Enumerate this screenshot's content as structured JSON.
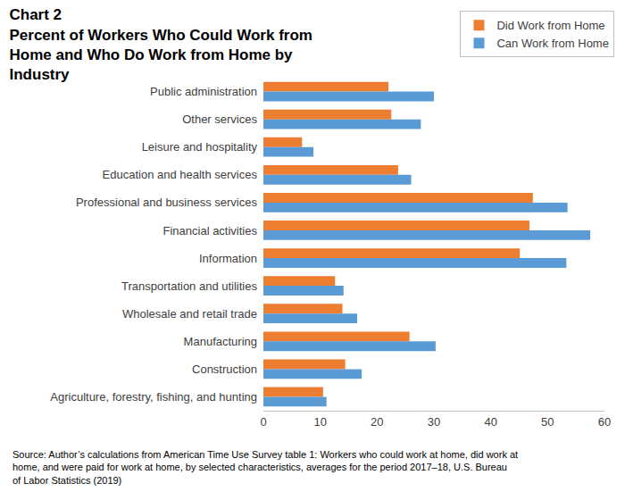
{
  "chart_data": {
    "type": "bar",
    "orientation": "horizontal",
    "title": "Chart 2",
    "subtitle": "Percent of Workers Who Could Work from Home and Who Do Work from Home by Industry",
    "annotations": [
      "Source: Author’s calculations from American Time Use Survey table 1: Workers who could work at home, did work at home, and were paid for work at home, by selected characteristics, averages for the period 2017–18, U.S. Bureau of Labor Statistics (2019)"
    ],
    "categories": [
      "Public administration",
      "Other services",
      "Leisure and hospitality",
      "Education and health services",
      "Professional and business services",
      "Financial activities",
      "Information",
      "Transportation and utilities",
      "Wholesale and retail trade",
      "Manufacturing",
      "Construction",
      "Agriculture, forestry, fishing, and hunting"
    ],
    "series": [
      {
        "name": "Did Work from Home",
        "color": "#ED7D31",
        "values": [
          22,
          22.5,
          6.8,
          23.7,
          47.4,
          46.8,
          45.1,
          12.6,
          13.9,
          25.7,
          14.4,
          10.5
        ]
      },
      {
        "name": "Can Work from Home",
        "color": "#5B9BD5",
        "values": [
          30,
          27.7,
          8.8,
          26,
          53.5,
          57.5,
          53.3,
          14.1,
          16.5,
          30.3,
          17.3,
          11.1
        ]
      }
    ],
    "xlim": [
      0,
      60
    ],
    "xticks": [
      0,
      10,
      20,
      30,
      40,
      50,
      60
    ],
    "grid": false,
    "legend": "top right",
    "data_labels": false
  }
}
